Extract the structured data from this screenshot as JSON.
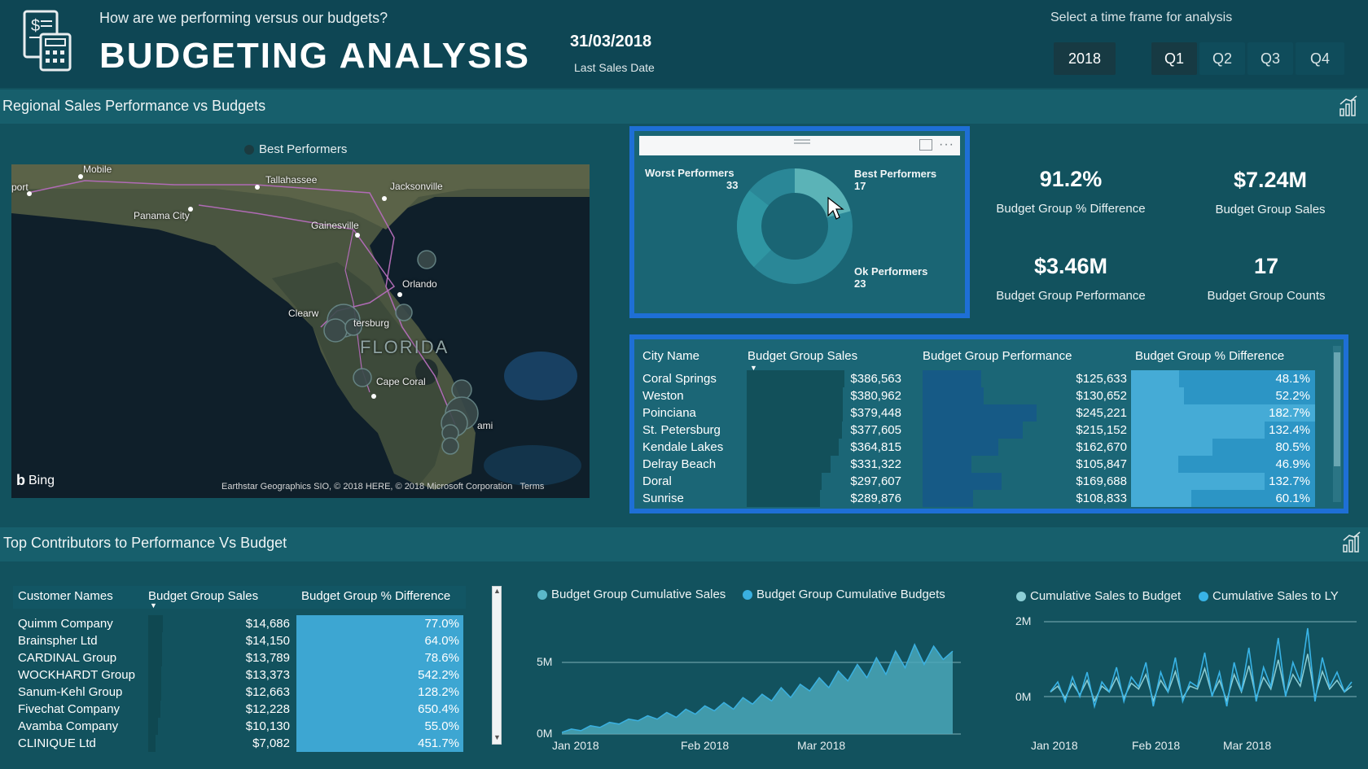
{
  "header": {
    "subtitle": "How are we performing versus our budgets?",
    "title": "BUDGETING ANALYSIS",
    "date": "31/03/2018",
    "date_label": "Last Sales Date",
    "time_label": "Select a time frame for analysis",
    "year": "2018",
    "quarters": [
      "Q1",
      "Q2",
      "Q3",
      "Q4"
    ],
    "selected_quarter": "Q1"
  },
  "section1": {
    "title": "Regional Sales Performance vs Budgets"
  },
  "section2": {
    "title": "Top Contributors to Performance Vs Budget"
  },
  "map": {
    "legend": "Best Performers",
    "legend_color": "#1b3b40",
    "cities": [
      "Mobile",
      "Tallahassee",
      "Jacksonville",
      "Panama City",
      "Gainesville",
      "Orlando",
      "Clearw",
      "tersburg",
      "FLORIDA",
      "Cape Coral",
      "ami",
      "port"
    ],
    "bing": "Bing",
    "copyright": "Earthstar Geographics SIO, © 2018 HERE, © 2018 Microsoft Corporation",
    "terms": "Terms"
  },
  "donut": {
    "worst_label": "Worst Performers",
    "worst_count": "33",
    "best_label": "Best Performers",
    "best_count": "17",
    "ok_label": "Ok Performers",
    "ok_count": "23",
    "colors": {
      "worst": "#2a8797",
      "best": "#5bb3b7",
      "ok": "#2f96a3"
    }
  },
  "kpis": {
    "pct_diff": {
      "value": "91.2%",
      "label": "Budget Group % Difference"
    },
    "sales": {
      "value": "$7.24M",
      "label": "Budget Group Sales"
    },
    "performance": {
      "value": "$3.46M",
      "label": "Budget Group Performance"
    },
    "counts": {
      "value": "17",
      "label": "Budget Group Counts"
    }
  },
  "city_table": {
    "headers": [
      "City Name",
      "Budget Group Sales",
      "Budget Group Performance",
      "Budget Group % Difference"
    ],
    "rows": [
      {
        "city": "Coral Springs",
        "sales": "$386,563",
        "perf": "$125,633",
        "pct": "48.1%",
        "s": 386563,
        "p": 125633,
        "d": 48.1
      },
      {
        "city": "Weston",
        "sales": "$380,962",
        "perf": "$130,652",
        "pct": "52.2%",
        "s": 380962,
        "p": 130652,
        "d": 52.2
      },
      {
        "city": "Poinciana",
        "sales": "$379,448",
        "perf": "$245,221",
        "pct": "182.7%",
        "s": 379448,
        "p": 245221,
        "d": 182.7
      },
      {
        "city": "St. Petersburg",
        "sales": "$377,605",
        "perf": "$215,152",
        "pct": "132.4%",
        "s": 377605,
        "p": 215152,
        "d": 132.4
      },
      {
        "city": "Kendale Lakes",
        "sales": "$364,815",
        "perf": "$162,670",
        "pct": "80.5%",
        "s": 364815,
        "p": 162670,
        "d": 80.5
      },
      {
        "city": "Delray Beach",
        "sales": "$331,322",
        "perf": "$105,847",
        "pct": "46.9%",
        "s": 331322,
        "p": 105847,
        "d": 46.9
      },
      {
        "city": "Doral",
        "sales": "$297,607",
        "perf": "$169,688",
        "pct": "132.7%",
        "s": 297607,
        "p": 169688,
        "d": 132.7
      },
      {
        "city": "Sunrise",
        "sales": "$289,876",
        "perf": "$108,833",
        "pct": "60.1%",
        "s": 289876,
        "p": 108833,
        "d": 60.1
      }
    ]
  },
  "cust_table": {
    "headers": [
      "Customer Names",
      "Budget Group Sales",
      "Budget Group % Difference"
    ],
    "rows": [
      {
        "name": "Quimm Company",
        "sales": "$14,686",
        "pct": "77.0%",
        "s": 14686
      },
      {
        "name": "Brainspher Ltd",
        "sales": "$14,150",
        "pct": "64.0%",
        "s": 14150
      },
      {
        "name": "CARDINAL Group",
        "sales": "$13,789",
        "pct": "78.6%",
        "s": 13789
      },
      {
        "name": "WOCKHARDT Group",
        "sales": "$13,373",
        "pct": "542.2%",
        "s": 13373
      },
      {
        "name": "Sanum-Kehl Group",
        "sales": "$12,663",
        "pct": "128.2%",
        "s": 12663
      },
      {
        "name": "Fivechat Company",
        "sales": "$12,228",
        "pct": "650.4%",
        "s": 12228
      },
      {
        "name": "Avamba Company",
        "sales": "$10,130",
        "pct": "55.0%",
        "s": 10130
      },
      {
        "name": "CLINIQUE Ltd",
        "sales": "$7,082",
        "pct": "451.7%",
        "s": 7082
      }
    ]
  },
  "chart_data": [
    {
      "type": "area",
      "series": [
        {
          "name": "Budget Group Cumulative Sales",
          "color": "#5bb8c9"
        },
        {
          "name": "Budget Group Cumulative Budgets",
          "color": "#3ab0e0"
        }
      ],
      "x_ticks": [
        "Jan 2018",
        "Feb 2018",
        "Mar 2018"
      ],
      "y_ticks": [
        "0M",
        "5M"
      ],
      "values": [
        0.1,
        0.3,
        0.2,
        0.5,
        0.4,
        0.7,
        0.6,
        0.9,
        0.8,
        1.1,
        0.9,
        1.3,
        1.0,
        1.5,
        1.2,
        1.7,
        1.4,
        1.9,
        1.5,
        2.2,
        1.8,
        2.4,
        2.0,
        2.8,
        2.2,
        3.0,
        2.6,
        3.4,
        2.8,
        3.8,
        3.2,
        4.2,
        3.4,
        4.6,
        3.6,
        5.0,
        4.0,
        5.4,
        4.2,
        5.3,
        4.5,
        5.0
      ]
    },
    {
      "type": "area",
      "series": [
        {
          "name": "Cumulative Sales to Budget",
          "color": "#8ccfd6"
        },
        {
          "name": "Cumulative Sales to LY",
          "color": "#38b3e6"
        }
      ],
      "x_ticks": [
        "Jan 2018",
        "Feb 2018",
        "Mar 2018"
      ],
      "y_ticks": [
        "2M",
        "0M"
      ],
      "values": [
        0.1,
        0.3,
        -0.1,
        0.4,
        0.0,
        0.5,
        -0.2,
        0.3,
        0.1,
        0.6,
        -0.1,
        0.4,
        0.2,
        0.7,
        -0.2,
        0.5,
        0.1,
        0.8,
        -0.1,
        0.3,
        0.2,
        0.9,
        0.0,
        0.5,
        -0.2,
        0.7,
        0.1,
        1.0,
        -0.1,
        0.6,
        0.2,
        1.2,
        0.0,
        0.7,
        0.3,
        1.4,
        -0.1,
        0.8,
        0.2,
        0.5,
        0.1,
        0.3
      ]
    }
  ]
}
